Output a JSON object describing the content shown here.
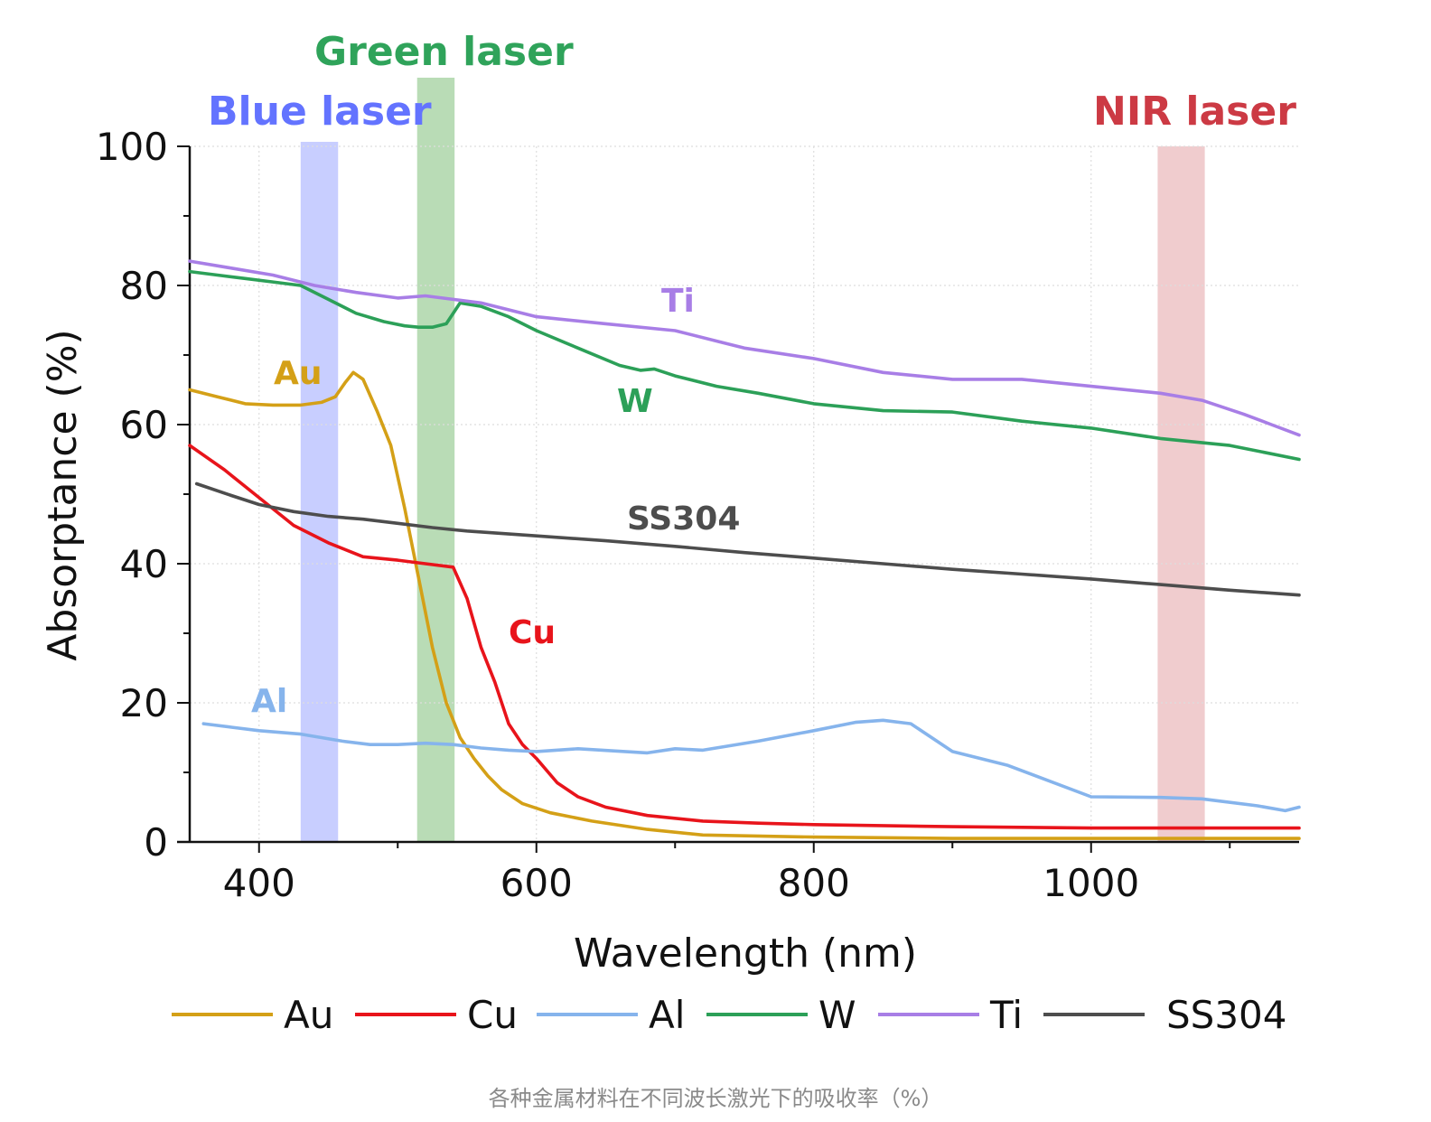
{
  "caption": "各种金属材料在不同波长激光下的吸收率（%）",
  "chart_data": {
    "type": "line",
    "xlabel": "Wavelength (nm)",
    "ylabel": "Absorptance (%)",
    "xlim": [
      350,
      1150
    ],
    "ylim": [
      0,
      100
    ],
    "x_ticks": [
      400,
      600,
      800,
      1000
    ],
    "y_ticks": [
      0,
      20,
      40,
      60,
      80,
      100
    ],
    "grid": true,
    "legend": "bottom",
    "bands": [
      {
        "name": "Blue laser",
        "from": 430,
        "to": 457,
        "color": "#9aa6ff"
      },
      {
        "name": "Green laser",
        "from": 514,
        "to": 541,
        "color": "#7fbf7a"
      },
      {
        "name": "NIR laser",
        "from": 1048,
        "to": 1082,
        "color": "#e3a3a6"
      }
    ],
    "series": [
      {
        "name": "Au",
        "color": "#d4a017",
        "x": [
          350,
          370,
          390,
          410,
          430,
          445,
          455,
          462,
          468,
          475,
          485,
          495,
          505,
          515,
          525,
          535,
          545,
          555,
          565,
          575,
          590,
          610,
          640,
          680,
          720,
          800,
          900,
          1000,
          1100,
          1150
        ],
        "y": [
          65,
          64,
          63,
          62.8,
          62.8,
          63.2,
          64,
          66,
          67.5,
          66.5,
          62,
          57,
          48,
          38,
          28,
          20,
          15,
          12,
          9.5,
          7.5,
          5.5,
          4.2,
          3,
          1.8,
          1,
          0.7,
          0.5,
          0.5,
          0.5,
          0.5
        ]
      },
      {
        "name": "Cu",
        "color": "#e8141b",
        "x": [
          350,
          375,
          400,
          425,
          450,
          475,
          500,
          520,
          540,
          550,
          560,
          570,
          580,
          590,
          600,
          615,
          630,
          650,
          680,
          720,
          760,
          800,
          900,
          1000,
          1100,
          1150
        ],
        "y": [
          57,
          53.5,
          49.5,
          45.5,
          43,
          41,
          40.5,
          40,
          39.5,
          35,
          28,
          23,
          17,
          14,
          12,
          8.5,
          6.5,
          5,
          3.8,
          3,
          2.7,
          2.5,
          2.2,
          2,
          2,
          2
        ]
      },
      {
        "name": "Al",
        "color": "#86b4ec",
        "x": [
          360,
          380,
          400,
          430,
          460,
          480,
          500,
          520,
          540,
          560,
          580,
          600,
          630,
          680,
          700,
          720,
          760,
          800,
          830,
          850,
          870,
          900,
          940,
          1000,
          1050,
          1080,
          1120,
          1140,
          1150
        ],
        "y": [
          17,
          16.5,
          16,
          15.5,
          14.5,
          14,
          14,
          14.2,
          14,
          13.5,
          13.2,
          13,
          13.4,
          12.8,
          13.4,
          13.2,
          14.5,
          16,
          17.2,
          17.5,
          17,
          13,
          11,
          6.5,
          6.4,
          6.2,
          5.2,
          4.5,
          5
        ]
      },
      {
        "name": "W",
        "color": "#2ca058",
        "x": [
          350,
          370,
          390,
          410,
          430,
          450,
          470,
          490,
          505,
          515,
          525,
          535,
          545,
          560,
          580,
          600,
          630,
          660,
          675,
          685,
          700,
          730,
          760,
          800,
          850,
          900,
          950,
          1000,
          1050,
          1100,
          1150
        ],
        "y": [
          82,
          81.5,
          81,
          80.5,
          80,
          78,
          76,
          74.8,
          74.2,
          74,
          74,
          74.5,
          77.5,
          77,
          75.5,
          73.5,
          71,
          68.5,
          67.8,
          68,
          67,
          65.5,
          64.5,
          63,
          62,
          61.8,
          60.5,
          59.5,
          58,
          57,
          55
        ]
      },
      {
        "name": "Ti",
        "color": "#a87ee6",
        "x": [
          350,
          380,
          410,
          440,
          470,
          500,
          520,
          540,
          560,
          600,
          650,
          700,
          750,
          800,
          850,
          900,
          950,
          1000,
          1050,
          1080,
          1110,
          1130,
          1150
        ],
        "y": [
          83.5,
          82.5,
          81.5,
          80,
          79,
          78.2,
          78.5,
          78,
          77.5,
          75.5,
          74.5,
          73.5,
          71,
          69.5,
          67.5,
          66.5,
          66.5,
          65.5,
          64.5,
          63.5,
          61.5,
          60,
          58.5
        ]
      },
      {
        "name": "SS304",
        "color": "#4d4d4d",
        "x": [
          355,
          380,
          400,
          425,
          450,
          475,
          500,
          525,
          550,
          600,
          650,
          700,
          750,
          800,
          850,
          900,
          950,
          1000,
          1050,
          1100,
          1150
        ],
        "y": [
          51.5,
          49.8,
          48.5,
          47.5,
          46.8,
          46.4,
          45.8,
          45.2,
          44.7,
          44,
          43.3,
          42.5,
          41.6,
          40.8,
          40,
          39.2,
          38.5,
          37.8,
          37,
          36.2,
          35.5
        ]
      }
    ],
    "annotations": [
      {
        "text": "Blue laser",
        "color": "#6373ff"
      },
      {
        "text": "Green laser",
        "color": "#2fa35a"
      },
      {
        "text": "NIR laser",
        "color": "#cc3a44"
      },
      {
        "text": "Au",
        "color": "#d4a017"
      },
      {
        "text": "Cu",
        "color": "#e8141b"
      },
      {
        "text": "Al",
        "color": "#86b4ec"
      },
      {
        "text": "W",
        "color": "#2ca058"
      },
      {
        "text": "Ti",
        "color": "#a87ee6"
      },
      {
        "text": "SS304",
        "color": "#4d4d4d"
      }
    ]
  }
}
